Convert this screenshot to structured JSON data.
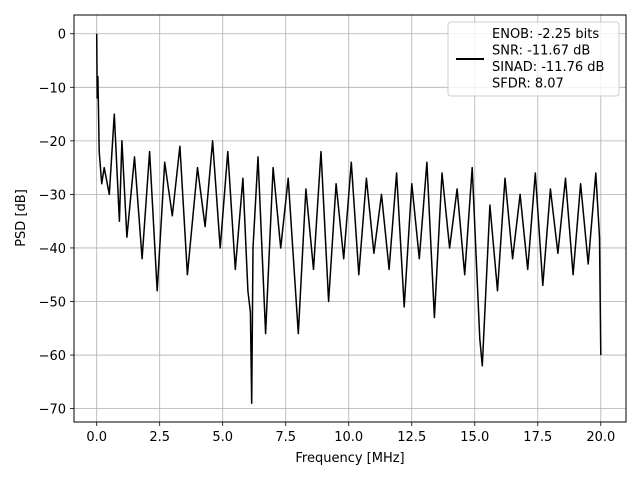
{
  "chart_data": {
    "type": "line",
    "title": "",
    "xlabel": "Frequency [MHz]",
    "ylabel": "PSD [dB]",
    "xlim": [
      -0.9,
      21.0
    ],
    "ylim": [
      -72.5,
      3.5
    ],
    "xticks": [
      0.0,
      2.5,
      5.0,
      7.5,
      10.0,
      12.5,
      15.0,
      17.5,
      20.0
    ],
    "xtick_labels": [
      "0.0",
      "2.5",
      "5.0",
      "7.5",
      "10.0",
      "12.5",
      "15.0",
      "17.5",
      "20.0"
    ],
    "yticks": [
      0,
      -10,
      -20,
      -30,
      -40,
      -50,
      -60,
      -70
    ],
    "ytick_labels": [
      "0",
      "−10",
      "−20",
      "−30",
      "−40",
      "−50",
      "−60",
      "−70"
    ],
    "grid": true,
    "legend_position": "top-right",
    "series": [
      {
        "name": "ENOB: -2.25 bits\nSNR: -11.67 dB\nSINAD: -11.76 dB\nSFDR: 8.07",
        "color": "#000000",
        "x": [
          0.0,
          0.02,
          0.05,
          0.1,
          0.2,
          0.3,
          0.5,
          0.7,
          0.9,
          1.0,
          1.2,
          1.5,
          1.8,
          2.1,
          2.4,
          2.7,
          3.0,
          3.3,
          3.6,
          4.0,
          4.3,
          4.6,
          4.9,
          5.2,
          5.5,
          5.8,
          6.0,
          6.1,
          6.15,
          6.2,
          6.4,
          6.7,
          7.0,
          7.3,
          7.6,
          8.0,
          8.3,
          8.6,
          8.9,
          9.2,
          9.5,
          9.8,
          10.1,
          10.4,
          10.7,
          11.0,
          11.3,
          11.6,
          11.9,
          12.2,
          12.5,
          12.8,
          13.1,
          13.4,
          13.7,
          14.0,
          14.3,
          14.6,
          14.9,
          15.2,
          15.3,
          15.6,
          15.9,
          16.2,
          16.5,
          16.8,
          17.1,
          17.4,
          17.7,
          18.0,
          18.3,
          18.6,
          18.9,
          19.2,
          19.5,
          19.8,
          19.95,
          20.0
        ],
        "y": [
          0.0,
          -12.0,
          -8.0,
          -22.0,
          -28.0,
          -25.0,
          -30.0,
          -15.0,
          -35.0,
          -20.0,
          -38.0,
          -23.0,
          -42.0,
          -22.0,
          -48.0,
          -24.0,
          -34.0,
          -21.0,
          -45.0,
          -25.0,
          -36.0,
          -20.0,
          -40.0,
          -22.0,
          -44.0,
          -27.0,
          -48.0,
          -52.0,
          -69.0,
          -40.0,
          -23.0,
          -56.0,
          -25.0,
          -40.0,
          -27.0,
          -56.0,
          -29.0,
          -44.0,
          -22.0,
          -50.0,
          -28.0,
          -42.0,
          -24.0,
          -45.0,
          -27.0,
          -41.0,
          -30.0,
          -44.0,
          -26.0,
          -51.0,
          -28.0,
          -42.0,
          -24.0,
          -53.0,
          -26.0,
          -40.0,
          -29.0,
          -45.0,
          -25.0,
          -57.0,
          -62.0,
          -32.0,
          -48.0,
          -27.0,
          -42.0,
          -30.0,
          -44.0,
          -26.0,
          -47.0,
          -29.0,
          -41.0,
          -27.0,
          -45.0,
          -28.0,
          -43.0,
          -26.0,
          -38.0,
          -60.0
        ]
      }
    ]
  }
}
